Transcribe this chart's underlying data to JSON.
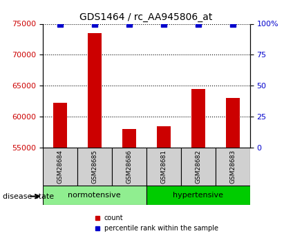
{
  "title": "GDS1464 / rc_AA945806_at",
  "samples": [
    "GSM28684",
    "GSM28685",
    "GSM28686",
    "GSM28681",
    "GSM28682",
    "GSM28683"
  ],
  "counts": [
    62200,
    73500,
    58000,
    58500,
    64500,
    63000
  ],
  "percentile_ranks": [
    100,
    100,
    100,
    100,
    100,
    100
  ],
  "ylim_left": [
    55000,
    75000
  ],
  "ylim_right": [
    0,
    100
  ],
  "yticks_left": [
    55000,
    60000,
    65000,
    70000,
    75000
  ],
  "yticks_right": [
    0,
    25,
    50,
    75,
    100
  ],
  "yticklabels_right": [
    "0",
    "25",
    "50",
    "75",
    "100%"
  ],
  "bar_color": "#cc0000",
  "marker_color": "#0000cc",
  "normotensive_label": "normotensive",
  "hypertensive_label": "hypertensive",
  "disease_state_label": "disease state",
  "legend_count": "count",
  "legend_percentile": "percentile rank within the sample",
  "group1_indices": [
    0,
    1,
    2
  ],
  "group2_indices": [
    3,
    4,
    5
  ],
  "box_bg_color": "#d0d0d0",
  "norm_bg_color": "#90ee90",
  "hyper_bg_color": "#00cc00",
  "bar_width": 0.4,
  "marker_size": 6
}
